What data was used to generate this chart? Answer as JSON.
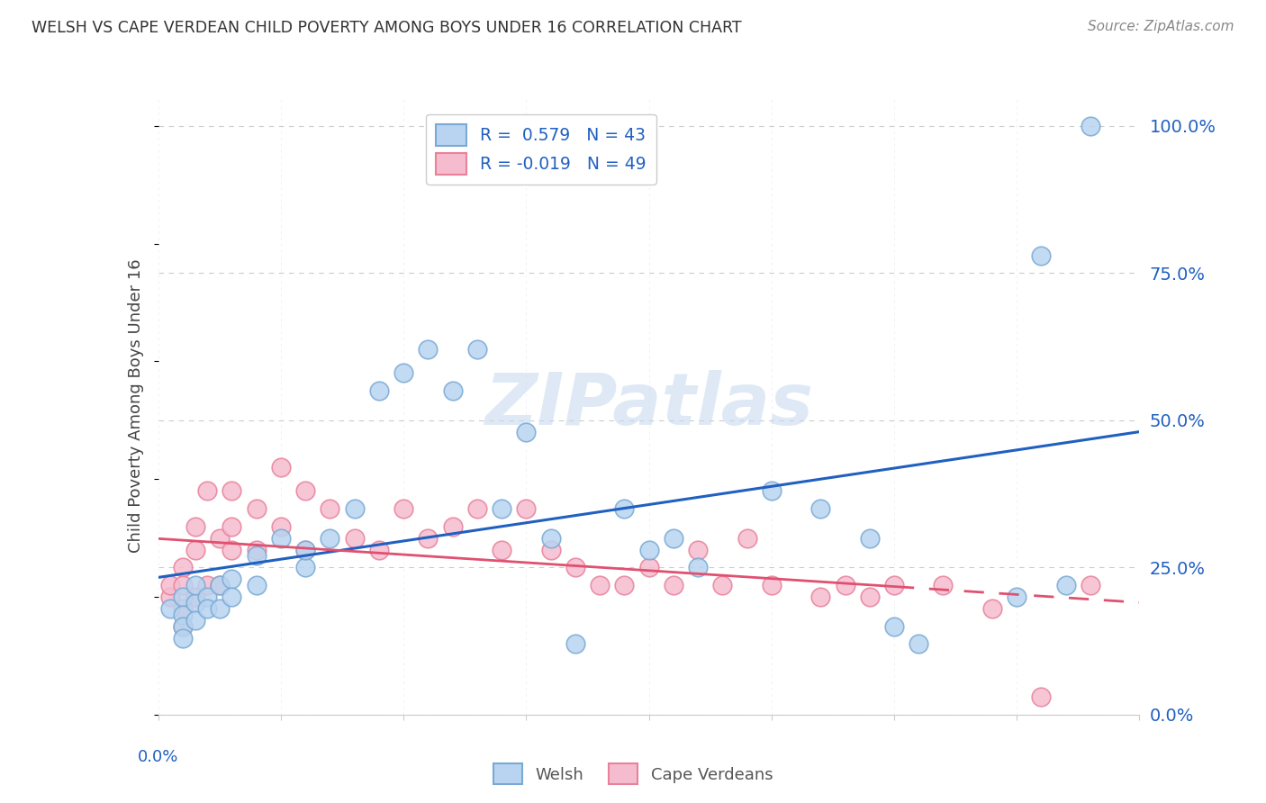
{
  "title": "WELSH VS CAPE VERDEAN CHILD POVERTY AMONG BOYS UNDER 16 CORRELATION CHART",
  "source": "Source: ZipAtlas.com",
  "ylabel": "Child Poverty Among Boys Under 16",
  "watermark": "ZIPatlas",
  "welsh_R": 0.579,
  "welsh_N": 43,
  "cape_verdean_R": -0.019,
  "cape_verdean_N": 49,
  "xlim": [
    0.0,
    0.4
  ],
  "ylim": [
    0.0,
    1.05
  ],
  "yticks": [
    0.0,
    0.25,
    0.5,
    0.75,
    1.0
  ],
  "ytick_labels": [
    "0.0%",
    "25.0%",
    "50.0%",
    "75.0%",
    "100.0%"
  ],
  "welsh_face": "#b8d4f0",
  "welsh_edge": "#7aaad4",
  "cape_face": "#f5bccf",
  "cape_edge": "#e8829a",
  "line_welsh": "#2060c0",
  "line_cape": "#e05070",
  "grid_color": "#cccccc",
  "bg": "#ffffff",
  "title_color": "#333333",
  "source_color": "#888888",
  "axis_label_color": "#2060c0",
  "welsh_x": [
    0.005,
    0.01,
    0.01,
    0.01,
    0.01,
    0.015,
    0.015,
    0.015,
    0.02,
    0.02,
    0.025,
    0.025,
    0.03,
    0.03,
    0.04,
    0.04,
    0.05,
    0.06,
    0.06,
    0.07,
    0.08,
    0.09,
    0.1,
    0.11,
    0.12,
    0.13,
    0.14,
    0.15,
    0.16,
    0.17,
    0.19,
    0.2,
    0.21,
    0.22,
    0.25,
    0.27,
    0.29,
    0.3,
    0.31,
    0.35,
    0.36,
    0.37,
    0.38
  ],
  "welsh_y": [
    0.18,
    0.2,
    0.17,
    0.15,
    0.13,
    0.19,
    0.22,
    0.16,
    0.2,
    0.18,
    0.22,
    0.18,
    0.23,
    0.2,
    0.22,
    0.27,
    0.3,
    0.25,
    0.28,
    0.3,
    0.35,
    0.55,
    0.58,
    0.62,
    0.55,
    0.62,
    0.35,
    0.48,
    0.3,
    0.12,
    0.35,
    0.28,
    0.3,
    0.25,
    0.38,
    0.35,
    0.3,
    0.15,
    0.12,
    0.2,
    0.78,
    0.22,
    1.0
  ],
  "cape_x": [
    0.005,
    0.005,
    0.01,
    0.01,
    0.01,
    0.01,
    0.015,
    0.015,
    0.015,
    0.02,
    0.02,
    0.025,
    0.025,
    0.03,
    0.03,
    0.03,
    0.04,
    0.04,
    0.05,
    0.05,
    0.06,
    0.06,
    0.07,
    0.08,
    0.09,
    0.1,
    0.11,
    0.12,
    0.13,
    0.14,
    0.15,
    0.16,
    0.17,
    0.18,
    0.19,
    0.2,
    0.21,
    0.22,
    0.23,
    0.24,
    0.25,
    0.27,
    0.28,
    0.29,
    0.3,
    0.32,
    0.34,
    0.36,
    0.38
  ],
  "cape_y": [
    0.2,
    0.22,
    0.25,
    0.22,
    0.18,
    0.15,
    0.28,
    0.32,
    0.2,
    0.38,
    0.22,
    0.3,
    0.22,
    0.38,
    0.32,
    0.28,
    0.35,
    0.28,
    0.42,
    0.32,
    0.38,
    0.28,
    0.35,
    0.3,
    0.28,
    0.35,
    0.3,
    0.32,
    0.35,
    0.28,
    0.35,
    0.28,
    0.25,
    0.22,
    0.22,
    0.25,
    0.22,
    0.28,
    0.22,
    0.3,
    0.22,
    0.2,
    0.22,
    0.2,
    0.22,
    0.22,
    0.18,
    0.03,
    0.22
  ]
}
